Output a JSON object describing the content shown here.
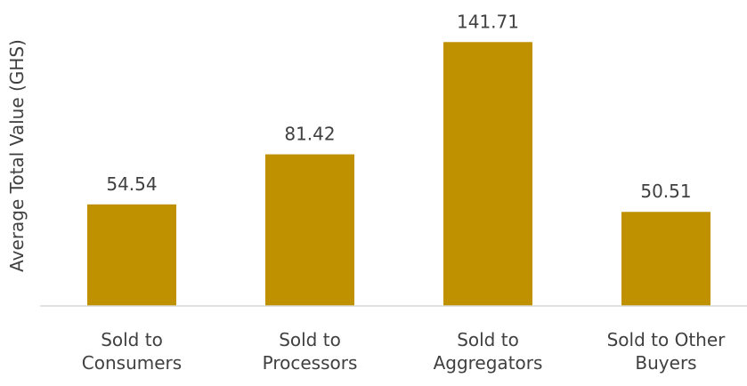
{
  "chart_data": {
    "type": "bar",
    "y_axis_label": "Average Total Value (GHS)",
    "categories": [
      "Sold to\nConsumers",
      "Sold to\nProcessors",
      "Sold to\nAggregators",
      "Sold to Other\nBuyers"
    ],
    "values": [
      54.54,
      81.42,
      141.71,
      50.51
    ],
    "color": "#bf9000",
    "ylim": [
      0,
      160
    ]
  }
}
